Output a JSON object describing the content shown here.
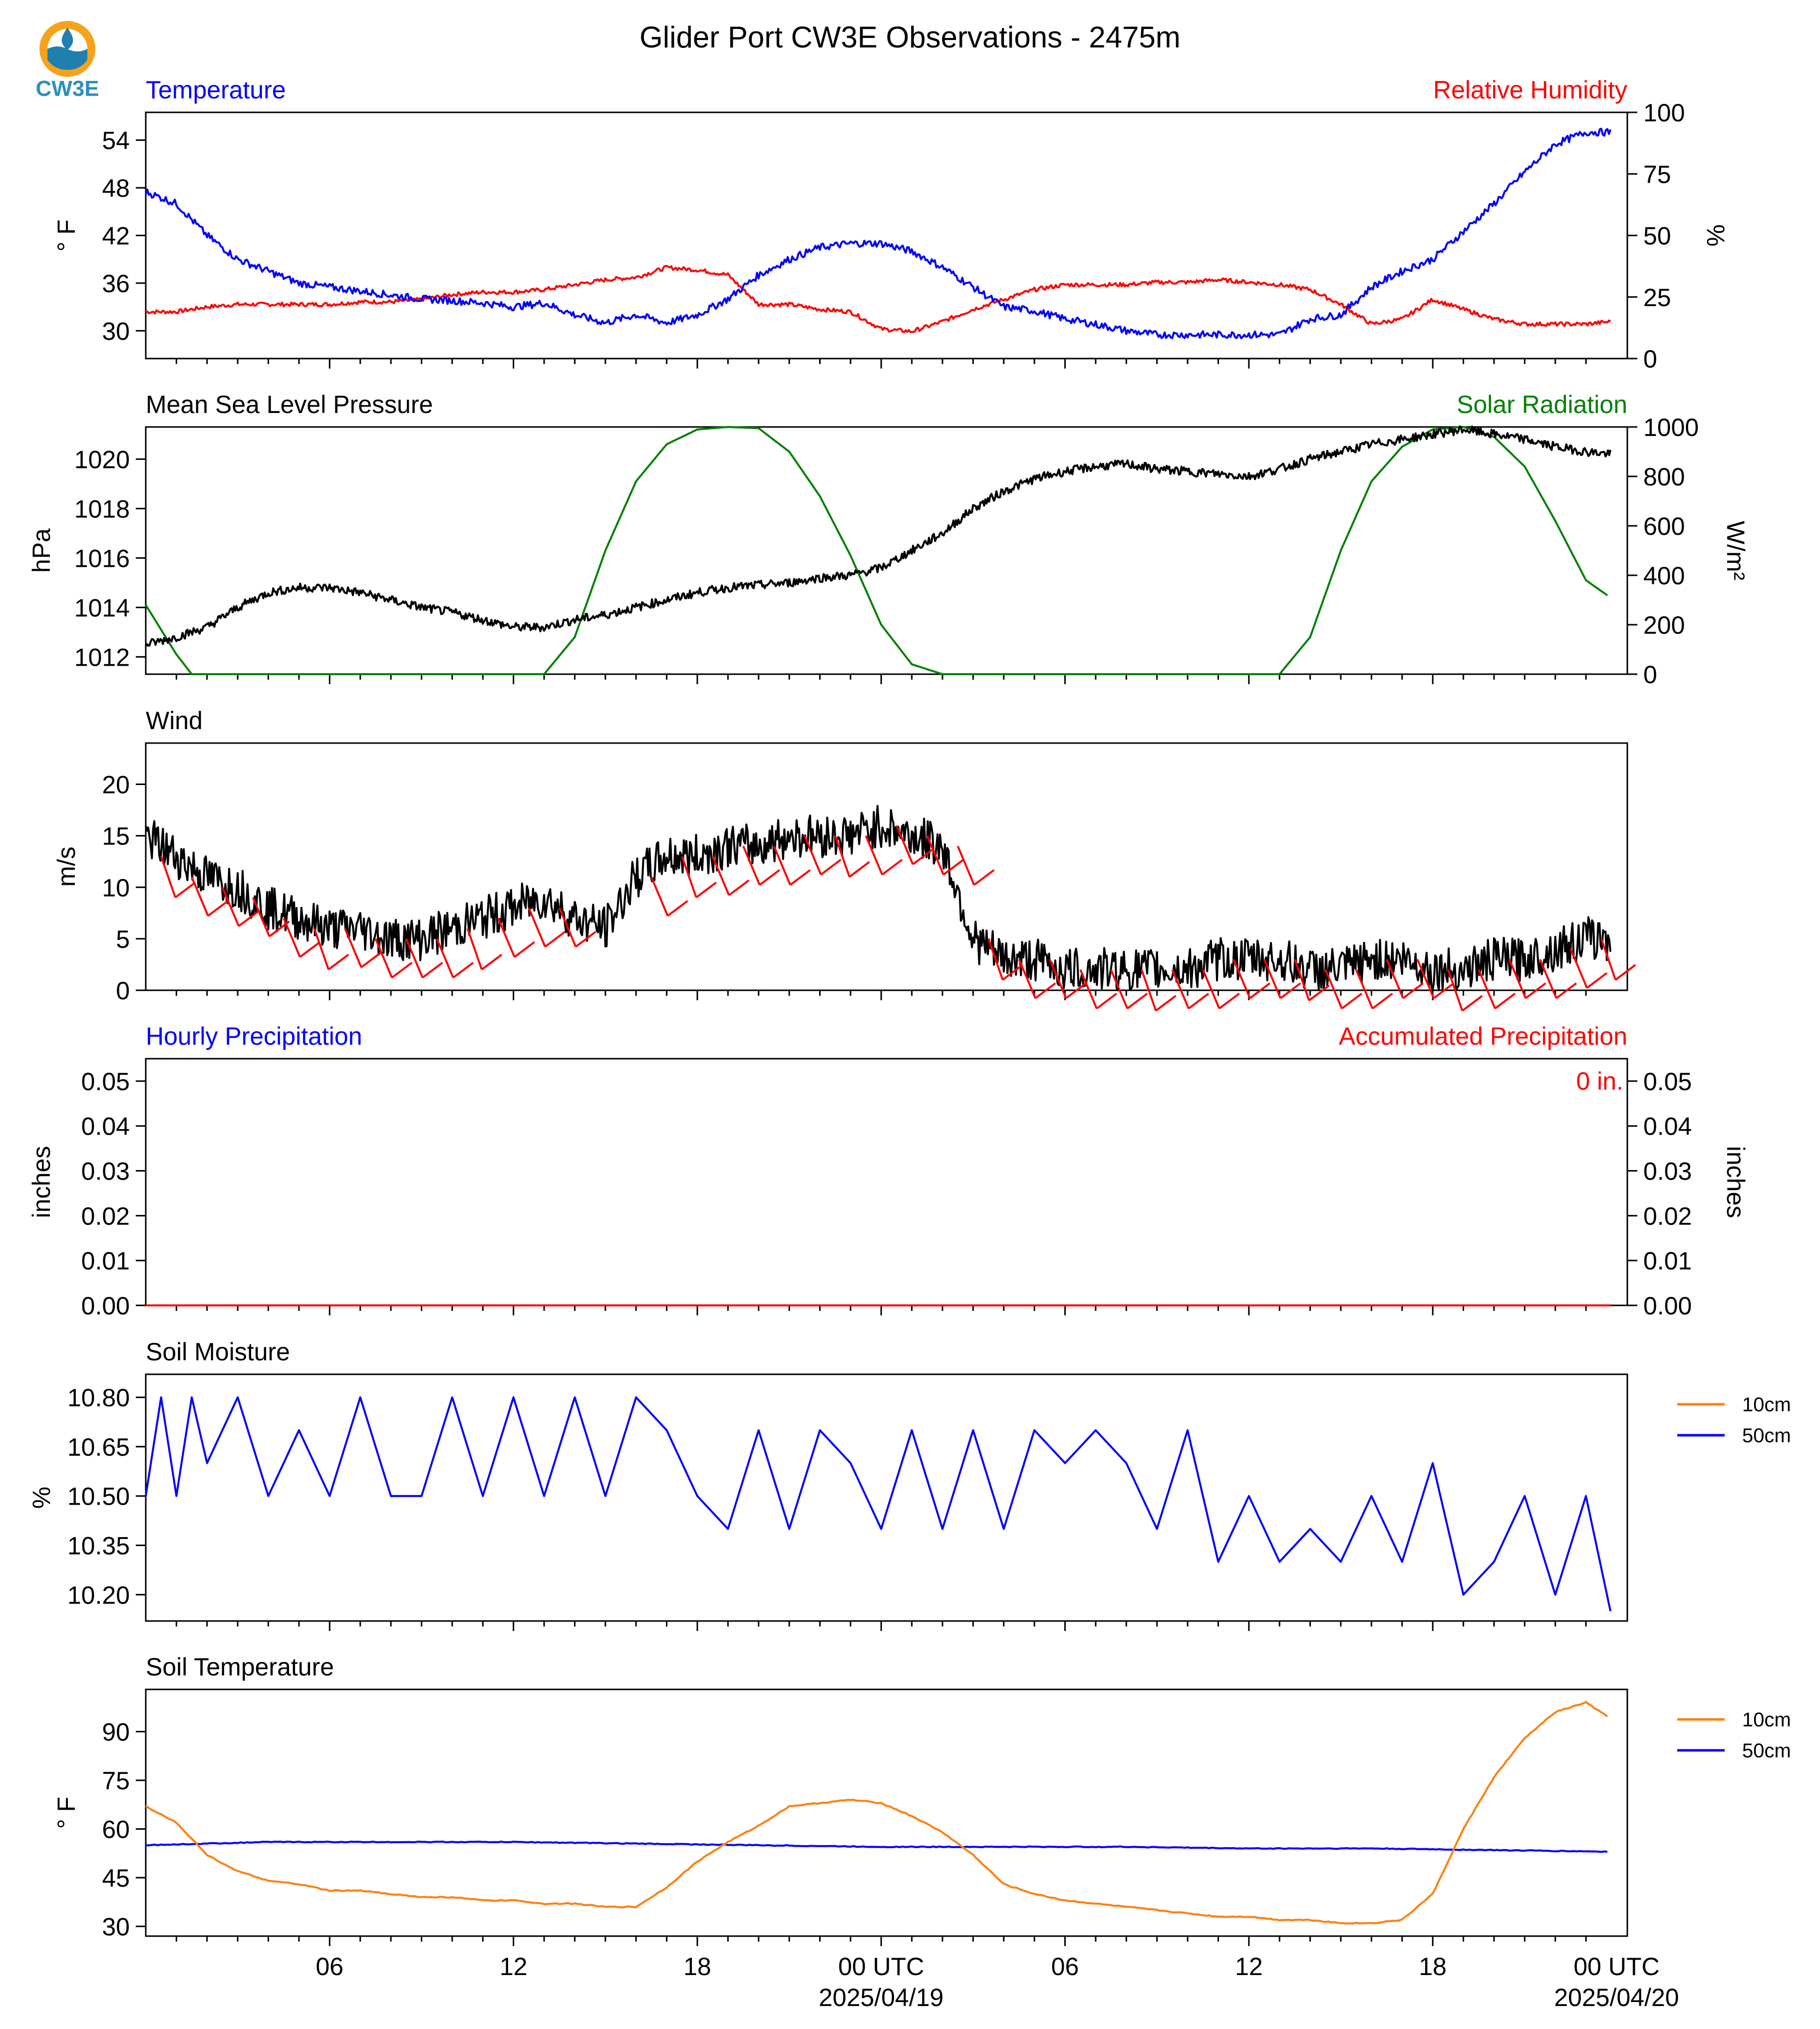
{
  "title": "Glider Port CW3E Observations - 2475m",
  "logo": {
    "text": "CW3E",
    "colors": {
      "sun": "#f7a21b",
      "water": "#1f7fae",
      "ring": "#3a9ac7"
    }
  },
  "colors": {
    "temperature": "#0000ff",
    "humidity": "#ff0000",
    "pressure": "#000000",
    "solar": "#008000",
    "wind": "#000000",
    "barbs": "#ff0000",
    "hourly": "#0000ff",
    "accum": "#ff0000",
    "soil10": "#ff7f0e",
    "soil50": "#0000ff"
  },
  "time_axis": {
    "start_hour_utc": 0,
    "end_hour_utc": 48,
    "major_ticks": [
      {
        "h": 6,
        "label": "06",
        "date": ""
      },
      {
        "h": 12,
        "label": "12",
        "date": ""
      },
      {
        "h": 18,
        "label": "18",
        "date": ""
      },
      {
        "h": 24,
        "label": "00 UTC",
        "date": "2025/04/19"
      },
      {
        "h": 30,
        "label": "06",
        "date": ""
      },
      {
        "h": 36,
        "label": "12",
        "date": ""
      },
      {
        "h": 42,
        "label": "18",
        "date": ""
      },
      {
        "h": 48,
        "label": "00 UTC",
        "date": "2025/04/20"
      }
    ]
  },
  "panels": {
    "temp_rh": {
      "left_title": "Temperature",
      "right_title": "Relative Humidity",
      "left_unit": "° F",
      "right_unit": "%",
      "left_ticks": [
        "30",
        "36",
        "42",
        "48",
        "54"
      ],
      "right_ticks": [
        "0",
        "25",
        "50",
        "75",
        "100"
      ]
    },
    "pressure_solar": {
      "left_title": "Mean Sea Level Pressure",
      "right_title": "Solar Radiation",
      "left_unit": "hPa",
      "right_unit": "W/m²",
      "left_ticks": [
        "1012",
        "1014",
        "1016",
        "1018",
        "1020"
      ],
      "right_ticks": [
        "0",
        "200",
        "400",
        "600",
        "800",
        "1000"
      ]
    },
    "wind": {
      "left_title": "Wind",
      "left_unit": "m/s",
      "left_ticks": [
        "0",
        "5",
        "10",
        "15",
        "20"
      ]
    },
    "precip": {
      "left_title": "Hourly Precipitation",
      "right_title": "Accumulated Precipitation",
      "left_unit": "inches",
      "right_unit": "inches",
      "total_label": "0 in.",
      "left_ticks": [
        "0.00",
        "0.01",
        "0.02",
        "0.03",
        "0.04",
        "0.05"
      ],
      "right_ticks": [
        "0.00",
        "0.01",
        "0.02",
        "0.03",
        "0.04",
        "0.05"
      ]
    },
    "soil_moisture": {
      "left_title": "Soil Moisture",
      "left_unit": "%",
      "left_ticks": [
        "10.20",
        "10.35",
        "10.50",
        "10.65",
        "10.80"
      ],
      "legend": [
        "10cm",
        "50cm"
      ]
    },
    "soil_temp": {
      "left_title": "Soil Temperature",
      "left_unit": "° F",
      "left_ticks": [
        "30",
        "45",
        "60",
        "75",
        "90"
      ],
      "legend": [
        "10cm",
        "50cm"
      ]
    }
  },
  "chart_data": [
    {
      "type": "line",
      "title": "Temperature",
      "ylabel": "° F",
      "ylim": [
        26.5,
        57.5
      ],
      "series": [
        {
          "name": "Temperature",
          "x": [
            0,
            1,
            2,
            3,
            4,
            5,
            6,
            7,
            8,
            9,
            10,
            11,
            12,
            13,
            14,
            15,
            16,
            17,
            18,
            19,
            20,
            21,
            22,
            23,
            24,
            25,
            26,
            27,
            28,
            29,
            30,
            31,
            32,
            33,
            34,
            35,
            36,
            37,
            38,
            39,
            40,
            41,
            42,
            43,
            44,
            45,
            46,
            47,
            47.8
          ],
          "y": [
            47.5,
            46,
            42,
            39,
            37.5,
            36,
            35.5,
            35,
            34.5,
            34,
            33.8,
            33.5,
            33,
            33.5,
            32,
            31,
            32,
            31,
            32,
            34,
            37,
            39,
            40.5,
            41,
            41,
            40,
            38,
            35.5,
            33,
            32.5,
            31.5,
            30.8,
            30,
            29.5,
            29.5,
            29.5,
            29.5,
            29.5,
            31.5,
            32,
            35.5,
            37.5,
            39,
            42.5,
            46,
            50,
            53.5,
            55,
            55
          ]
        }
      ]
    },
    {
      "type": "line",
      "title": "Relative Humidity",
      "ylabel": "%",
      "ylim": [
        0,
        100
      ],
      "series": [
        {
          "name": "Relative Humidity",
          "x": [
            0,
            1,
            2,
            3,
            4,
            5,
            6,
            7,
            8,
            9,
            10,
            11,
            12,
            13,
            14,
            15,
            16,
            17,
            18,
            19,
            20,
            21,
            22,
            23,
            24,
            25,
            26,
            27,
            28,
            29,
            30,
            31,
            32,
            33,
            34,
            35,
            36,
            37,
            38,
            39,
            40,
            41,
            42,
            43,
            44,
            45,
            46,
            47,
            47.8
          ],
          "y": [
            19,
            19,
            21,
            22,
            22,
            22,
            22,
            23,
            23,
            24,
            26,
            27,
            27,
            28,
            30,
            32,
            33,
            37,
            36,
            34,
            22,
            22,
            20,
            19,
            12,
            11,
            15,
            20,
            24,
            28,
            30,
            30,
            30,
            31,
            31,
            32,
            31,
            30,
            28,
            22,
            14,
            16,
            24,
            20,
            16,
            14,
            14,
            14,
            15
          ]
        }
      ]
    },
    {
      "type": "line",
      "title": "Mean Sea Level Pressure",
      "ylabel": "hPa",
      "ylim": [
        1011.3,
        1021.3
      ],
      "series": [
        {
          "name": "Mean Sea Level Pressure",
          "x": [
            0,
            1,
            2,
            3,
            4,
            5,
            6,
            7,
            8,
            9,
            10,
            11,
            12,
            13,
            14,
            15,
            16,
            17,
            18,
            19,
            20,
            21,
            22,
            23,
            24,
            25,
            26,
            27,
            28,
            29,
            30,
            31,
            32,
            33,
            34,
            35,
            36,
            37,
            38,
            39,
            40,
            41,
            42,
            43,
            44,
            45,
            46,
            47,
            47.8
          ],
          "y": [
            1012.5,
            1012.8,
            1013.2,
            1014,
            1014.6,
            1014.8,
            1014.8,
            1014.6,
            1014.3,
            1014,
            1013.8,
            1013.5,
            1013.2,
            1013.2,
            1013.5,
            1013.7,
            1014,
            1014.3,
            1014.6,
            1014.8,
            1014.9,
            1015,
            1015.2,
            1015.3,
            1015.6,
            1016.3,
            1017,
            1018,
            1018.7,
            1019.2,
            1019.5,
            1019.7,
            1019.8,
            1019.6,
            1019.5,
            1019.4,
            1019.3,
            1019.6,
            1020,
            1020.3,
            1020.6,
            1020.8,
            1021,
            1021.2,
            1021,
            1020.8,
            1020.5,
            1020.3,
            1020.2
          ]
        }
      ]
    },
    {
      "type": "area",
      "title": "Solar Radiation",
      "ylabel": "W/m²",
      "ylim": [
        0,
        1000
      ],
      "series": [
        {
          "name": "Solar Radiation",
          "x": [
            0,
            1,
            1.5,
            2,
            13,
            14,
            15,
            16,
            17,
            18,
            19,
            20,
            21,
            22,
            23,
            24,
            25,
            26,
            27,
            28,
            29,
            30,
            31,
            32,
            33,
            34,
            35,
            36,
            37,
            38,
            39,
            40,
            41,
            42,
            43,
            44,
            45,
            46,
            47,
            47.8
          ],
          "y": [
            280,
            80,
            0,
            0,
            0,
            150,
            500,
            780,
            930,
            990,
            1000,
            995,
            900,
            720,
            480,
            200,
            40,
            0,
            0,
            0,
            0,
            0,
            0,
            0,
            0,
            0,
            0,
            0,
            0,
            150,
            500,
            780,
            920,
            990,
            1000,
            960,
            840,
            620,
            380,
            310
          ]
        }
      ]
    },
    {
      "type": "line",
      "title": "Wind",
      "ylabel": "m/s",
      "ylim": [
        0,
        24
      ],
      "series": [
        {
          "name": "Wind",
          "x": [
            0,
            1,
            2,
            3,
            4,
            5,
            6,
            7,
            8,
            9,
            10,
            11,
            12,
            13,
            14,
            15,
            16,
            17,
            18,
            19,
            20,
            21,
            22,
            23,
            24,
            25,
            26,
            27,
            28,
            29,
            30,
            31,
            32,
            33,
            34,
            35,
            36,
            37,
            38,
            39,
            40,
            41,
            42,
            43,
            44,
            45,
            46,
            47,
            47.8
          ],
          "y": [
            15,
            13,
            11,
            10,
            8,
            7,
            6,
            6,
            5,
            5,
            6,
            7,
            8,
            9,
            7,
            6,
            11,
            13,
            13,
            14,
            14,
            15,
            15,
            15,
            16,
            15,
            14,
            5,
            3,
            3,
            2,
            2,
            2,
            2,
            2,
            3,
            3,
            3,
            2,
            2,
            3,
            3,
            2,
            2,
            3,
            3,
            4,
            5,
            5
          ]
        }
      ]
    },
    {
      "type": "line",
      "title": "Hourly Precipitation",
      "ylabel": "inches",
      "ylim": [
        0,
        0.055
      ],
      "series": [
        {
          "name": "Hourly Precipitation",
          "x": [
            0,
            47.8
          ],
          "y": [
            0,
            0
          ]
        },
        {
          "name": "Accumulated Precipitation",
          "x": [
            0,
            47.8
          ],
          "y": [
            0,
            0
          ]
        }
      ]
    },
    {
      "type": "line",
      "title": "Soil Moisture",
      "ylabel": "%",
      "ylim": [
        10.12,
        10.87
      ],
      "series": [
        {
          "name": "10cm",
          "x": [],
          "y": []
        },
        {
          "name": "50cm",
          "x": [
            0,
            0.5,
            1,
            1.5,
            2,
            3,
            4,
            5,
            6,
            7,
            8,
            9,
            10,
            11,
            12,
            13,
            14,
            15,
            16,
            17,
            18,
            19,
            20,
            21,
            22,
            23,
            24,
            25,
            26,
            27,
            28,
            29,
            30,
            31,
            32,
            33,
            34,
            35,
            36,
            37,
            38,
            39,
            40,
            41,
            42,
            43,
            44,
            45,
            46,
            47,
            47.8
          ],
          "y": [
            10.5,
            10.8,
            10.5,
            10.8,
            10.6,
            10.8,
            10.5,
            10.7,
            10.5,
            10.8,
            10.5,
            10.5,
            10.8,
            10.5,
            10.8,
            10.5,
            10.8,
            10.5,
            10.8,
            10.7,
            10.5,
            10.4,
            10.7,
            10.4,
            10.7,
            10.6,
            10.4,
            10.7,
            10.4,
            10.7,
            10.4,
            10.7,
            10.6,
            10.7,
            10.6,
            10.4,
            10.7,
            10.3,
            10.5,
            10.3,
            10.4,
            10.3,
            10.5,
            10.3,
            10.6,
            10.2,
            10.3,
            10.5,
            10.2,
            10.5,
            10.15
          ]
        }
      ]
    },
    {
      "type": "line",
      "title": "Soil Temperature",
      "ylabel": "° F",
      "ylim": [
        27,
        103
      ],
      "series": [
        {
          "name": "10cm",
          "x": [
            0,
            1,
            2,
            3,
            4,
            5,
            6,
            7,
            8,
            9,
            10,
            11,
            12,
            13,
            14,
            15,
            16,
            17,
            18,
            19,
            20,
            21,
            22,
            23,
            24,
            25,
            26,
            27,
            28,
            29,
            30,
            31,
            32,
            33,
            34,
            35,
            36,
            37,
            38,
            39,
            40,
            41,
            42,
            43,
            44,
            45,
            46,
            47,
            47.8
          ],
          "y": [
            67,
            62,
            52,
            47,
            44,
            43,
            41,
            41,
            40,
            39,
            39,
            38,
            38,
            37,
            37,
            36,
            36,
            42,
            50,
            56,
            61,
            67,
            68,
            69,
            68,
            64,
            59,
            52,
            43,
            40,
            38,
            37,
            36,
            35,
            34,
            33,
            33,
            32,
            32,
            31,
            31,
            32,
            40,
            60,
            76,
            88,
            96,
            99,
            94
          ]
        },
        {
          "name": "50cm",
          "x": [
            0,
            4,
            8,
            12,
            16,
            20,
            24,
            28,
            32,
            36,
            40,
            44,
            47.8
          ],
          "y": [
            55,
            56,
            56,
            56,
            55.5,
            55,
            54.5,
            54.5,
            54.5,
            54,
            54,
            53.5,
            53
          ]
        }
      ]
    },
    {
      "type": "scatter",
      "title": "Wind barbs",
      "series": [
        {
          "name": "barbs",
          "x": [
            0.5,
            1.5,
            2.5,
            3.5,
            4.5,
            5.5,
            6.5,
            7.5,
            8.5,
            9.5,
            10.5,
            11.5,
            12.5,
            13.5,
            16.5,
            17.5,
            18.5,
            19.5,
            20.5,
            21.5,
            22.5,
            23.5,
            24.5,
            25.5,
            26.5,
            27.5,
            28.5,
            29.5,
            30.5,
            31.5,
            32.5,
            33.5,
            34.5,
            35.5,
            36.5,
            37.5,
            38.5,
            39.5,
            40.5,
            41.5,
            42.5,
            43.5,
            44.5,
            45.5,
            46.5,
            47.5
          ],
          "y": [
            13,
            11,
            10,
            9,
            7,
            6,
            6,
            5,
            5,
            5,
            6,
            7,
            8,
            8,
            11,
            13,
            13,
            14,
            14,
            15,
            15,
            15,
            16,
            15,
            14,
            5,
            3,
            3,
            2,
            2,
            2,
            2,
            2,
            3,
            3,
            3,
            2,
            2,
            3,
            3,
            2,
            2,
            3,
            3,
            4,
            5
          ]
        }
      ]
    }
  ]
}
